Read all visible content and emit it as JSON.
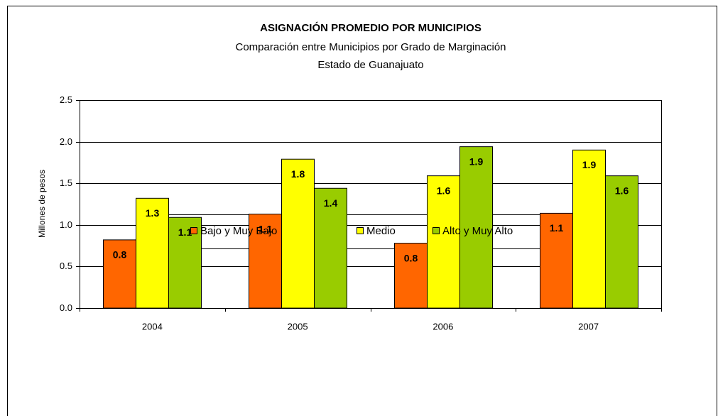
{
  "chart_data": {
    "type": "bar",
    "title": "ASIGNACIÓN  PROMEDIO POR MUNICIPIOS",
    "subtitle": [
      "Comparación entre Municipios por Grado de Marginación",
      "Estado de Guanajuato"
    ],
    "y_label": "Millones de pesos",
    "categories": [
      "2004",
      "2005",
      "2006",
      "2007"
    ],
    "series": [
      {
        "name": "Bajo y Muy Bajo",
        "color": "#ff6600",
        "values": [
          0.82,
          1.13,
          0.78,
          1.14
        ],
        "value_labels": [
          "0.8",
          "1.1",
          "0.8",
          "1.1"
        ]
      },
      {
        "name": "Medio",
        "color": "#ffff00",
        "values": [
          1.32,
          1.79,
          1.59,
          1.9
        ],
        "value_labels": [
          "1.3",
          "1.8",
          "1.6",
          "1.9"
        ]
      },
      {
        "name": "Alto y Muy Alto",
        "color": "#99cc00",
        "values": [
          1.09,
          1.44,
          1.94,
          1.59
        ],
        "value_labels": [
          "1.1",
          "1.4",
          "1.9",
          "1.6"
        ]
      }
    ],
    "ylim": [
      0,
      2.5
    ],
    "yticks": [
      {
        "value": 0,
        "label": "0.0"
      },
      0.5,
      {
        "value": 1,
        "label": "1.0"
      },
      1.5,
      {
        "value": 2,
        "label": "2.0"
      },
      2.5
    ],
    "grid": true,
    "legend": "bottom"
  }
}
